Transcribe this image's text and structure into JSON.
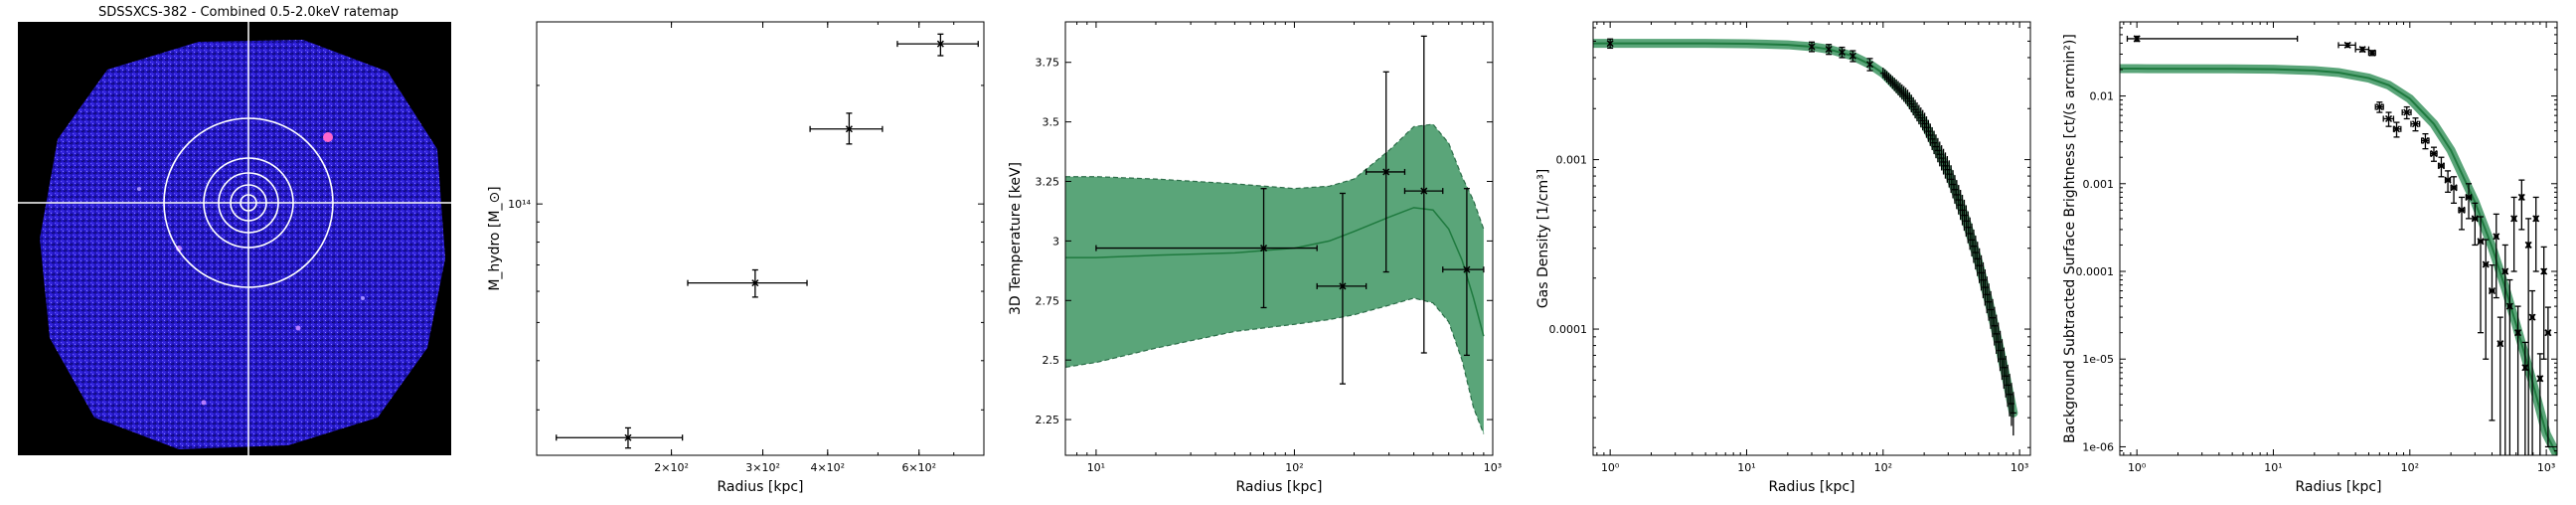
{
  "colors": {
    "band": "#5aa579",
    "band_edge": "#2c6e49",
    "curve": "#1f7a3f",
    "ring": "#ffffff",
    "image_bg": "#000000",
    "image_blob": "#2a1bd6"
  },
  "image_panel": {
    "title": "SDSSXCS-382 - Combined 0.5-2.0keV ratemap"
  },
  "chart_data": [
    {
      "type": "scatter",
      "name": "hydrostatic-mass-profile",
      "xlabel": "Radius [kpc]",
      "ylabel": "M_hydro [M_⊙]",
      "xscale": "log",
      "yscale": "log",
      "xlim": [
        110,
        800
      ],
      "ylim": [
        23000000000000.0,
        290000000000000.0
      ],
      "xticks": [
        {
          "v": 200,
          "label": "2×10²"
        },
        {
          "v": 300,
          "label": "3×10²"
        },
        {
          "v": 400,
          "label": "4×10²"
        },
        {
          "v": 600,
          "label": "6×10²"
        }
      ],
      "yticks": [
        {
          "v": 100000000000000.0,
          "label": "10¹⁴"
        }
      ],
      "points": [
        {
          "x": 165,
          "y": 25500000000000.0,
          "xlo": 120,
          "xhi": 210,
          "ylo": 24000000000000.0,
          "yhi": 27000000000000.0
        },
        {
          "x": 290,
          "y": 63000000000000.0,
          "xlo": 215,
          "xhi": 365,
          "ylo": 58000000000000.0,
          "yhi": 68000000000000.0
        },
        {
          "x": 440,
          "y": 155000000000000.0,
          "xlo": 370,
          "xhi": 510,
          "ylo": 142000000000000.0,
          "yhi": 170000000000000.0
        },
        {
          "x": 660,
          "y": 255000000000000.0,
          "xlo": 545,
          "xhi": 780,
          "ylo": 238000000000000.0,
          "yhi": 270000000000000.0
        }
      ]
    },
    {
      "type": "line",
      "name": "3d-temperature-profile",
      "xlabel": "Radius [kpc]",
      "ylabel": "3D Temperature [keV]",
      "xscale": "log",
      "xlim": [
        7,
        1000
      ],
      "ylim": [
        2.1,
        3.92
      ],
      "xticks": [
        {
          "v": 10,
          "label": "10¹"
        },
        {
          "v": 100,
          "label": "10²"
        },
        {
          "v": 1000,
          "label": "10³"
        }
      ],
      "yticks": [
        {
          "v": 2.25,
          "label": "2.25"
        },
        {
          "v": 2.5,
          "label": "2.5"
        },
        {
          "v": 2.75,
          "label": "2.75"
        },
        {
          "v": 3,
          "label": "3"
        },
        {
          "v": 3.25,
          "label": "3.25"
        },
        {
          "v": 3.5,
          "label": "3.5"
        },
        {
          "v": 3.75,
          "label": "3.75"
        }
      ],
      "model": {
        "x": [
          7,
          10,
          20,
          50,
          100,
          150,
          200,
          300,
          400,
          500,
          600,
          700,
          800,
          900
        ],
        "y": [
          2.93,
          2.93,
          2.94,
          2.95,
          2.97,
          3.0,
          3.04,
          3.1,
          3.14,
          3.13,
          3.05,
          2.92,
          2.76,
          2.6
        ],
        "lo": [
          2.47,
          2.49,
          2.55,
          2.62,
          2.65,
          2.67,
          2.69,
          2.73,
          2.76,
          2.74,
          2.66,
          2.5,
          2.3,
          2.19
        ],
        "hi": [
          3.27,
          3.27,
          3.26,
          3.24,
          3.22,
          3.23,
          3.26,
          3.38,
          3.48,
          3.49,
          3.41,
          3.27,
          3.17,
          3.05
        ]
      },
      "points": [
        {
          "x": 70,
          "y": 2.97,
          "xlo": 10,
          "xhi": 130,
          "ylo": 2.72,
          "yhi": 3.22
        },
        {
          "x": 175,
          "y": 2.81,
          "xlo": 130,
          "xhi": 230,
          "ylo": 2.4,
          "yhi": 3.2
        },
        {
          "x": 290,
          "y": 3.29,
          "xlo": 230,
          "xhi": 360,
          "ylo": 2.87,
          "yhi": 3.71
        },
        {
          "x": 450,
          "y": 3.21,
          "xlo": 360,
          "xhi": 560,
          "ylo": 2.53,
          "yhi": 3.86
        },
        {
          "x": 740,
          "y": 2.88,
          "xlo": 560,
          "xhi": 900,
          "ylo": 2.52,
          "yhi": 3.22
        }
      ]
    },
    {
      "type": "line",
      "name": "gas-density-profile",
      "xlabel": "Radius [kpc]",
      "ylabel": "Gas Density [1/cm³]",
      "xscale": "log",
      "yscale": "log",
      "xlim": [
        0.75,
        1200
      ],
      "ylim": [
        1.8e-05,
        0.0065
      ],
      "xticks": [
        {
          "v": 1,
          "label": "10⁰"
        },
        {
          "v": 10,
          "label": "10¹"
        },
        {
          "v": 100,
          "label": "10²"
        },
        {
          "v": 1000,
          "label": "10³"
        }
      ],
      "yticks": [
        {
          "v": 0.001,
          "label": "0.001"
        },
        {
          "v": 0.0001,
          "label": "0.0001"
        }
      ],
      "model": {
        "x": [
          0.75,
          1,
          5,
          10,
          20,
          30,
          40,
          60,
          80,
          100,
          150,
          200,
          300,
          400,
          500,
          600,
          700,
          800,
          900
        ],
        "y": [
          0.00485,
          0.00485,
          0.00485,
          0.00483,
          0.00476,
          0.00464,
          0.00448,
          0.00409,
          0.00365,
          0.00323,
          0.00232,
          0.00165,
          0.00085,
          0.000452,
          0.000248,
          0.000141,
          8.3e-05,
          5.1e-05,
          3.2e-05
        ]
      },
      "points": [
        {
          "x": 1,
          "y": 0.00485,
          "yerr": 0.0003
        },
        {
          "x": 30,
          "y": 0.00464,
          "yerr": 0.0003
        },
        {
          "x": 40,
          "y": 0.00448,
          "yerr": 0.0003
        },
        {
          "x": 50,
          "y": 0.0043,
          "yerr": 0.0003
        },
        {
          "x": 60,
          "y": 0.00409,
          "yerr": 0.0003
        },
        {
          "x": 80,
          "y": 0.00365,
          "yerr": 0.0003
        }
      ],
      "dense_error_range": [
        100,
        900
      ]
    },
    {
      "type": "scatter",
      "name": "surface-brightness-profile",
      "xlabel": "Radius [kpc]",
      "ylabel": "Background Subtracted Surface Brightness [ct/(s arcmin²)]",
      "xscale": "log",
      "yscale": "log",
      "xlim": [
        0.75,
        1200
      ],
      "ylim": [
        8e-07,
        0.07
      ],
      "xticks": [
        {
          "v": 1,
          "label": "10⁰"
        },
        {
          "v": 10,
          "label": "10¹"
        },
        {
          "v": 100,
          "label": "10²"
        },
        {
          "v": 1000,
          "label": "10³"
        }
      ],
      "yticks": [
        {
          "v": 0.01,
          "label": "0.01"
        },
        {
          "v": 0.001,
          "label": "0.001"
        },
        {
          "v": 0.0001,
          "label": "0.0001"
        },
        {
          "v": 1e-05,
          "label": "1e-05"
        },
        {
          "v": 1e-06,
          "label": "1e-06"
        }
      ],
      "model": {
        "x": [
          0.75,
          1,
          5,
          10,
          20,
          30,
          50,
          70,
          100,
          150,
          200,
          300,
          400,
          500,
          600,
          800,
          1000,
          1200
        ],
        "y": [
          0.0205,
          0.0205,
          0.0204,
          0.0202,
          0.0195,
          0.0185,
          0.016,
          0.0133,
          0.0093,
          0.0048,
          0.0024,
          0.00062,
          0.00019,
          6.5e-05,
          2.5e-05,
          5.2e-06,
          1.4e-06,
          8e-07
        ]
      },
      "points": [
        {
          "x": 1,
          "y": 0.045,
          "xlo": 0.85,
          "xhi": 15,
          "yerr": 0.003
        },
        {
          "x": 35,
          "y": 0.038,
          "xlo": 30,
          "xhi": 40,
          "yerr": 0.002
        },
        {
          "x": 45,
          "y": 0.034,
          "xlo": 40,
          "xhi": 50,
          "yerr": 0.002
        },
        {
          "x": 53,
          "y": 0.031,
          "xlo": 50,
          "xhi": 56,
          "yerr": 0.002
        },
        {
          "x": 60,
          "y": 0.0075,
          "xlo": 56,
          "xhi": 64,
          "yerr": 0.001
        },
        {
          "x": 70,
          "y": 0.0055,
          "xlo": 64,
          "xhi": 76,
          "yerr": 0.001
        },
        {
          "x": 80,
          "y": 0.0042,
          "xlo": 76,
          "xhi": 86,
          "yerr": 0.0008
        },
        {
          "x": 95,
          "y": 0.0065,
          "xlo": 88,
          "xhi": 102,
          "yerr": 0.001
        },
        {
          "x": 110,
          "y": 0.0048,
          "xlo": 102,
          "xhi": 118,
          "yerr": 0.0008
        },
        {
          "x": 130,
          "y": 0.0031,
          "xlo": 122,
          "xhi": 138,
          "yerr": 0.0006
        },
        {
          "x": 150,
          "y": 0.0022,
          "xlo": 142,
          "xhi": 158,
          "yerr": 0.0004
        },
        {
          "x": 170,
          "y": 0.0016,
          "xlo": 162,
          "xhi": 178,
          "yerr": 0.0004
        },
        {
          "x": 190,
          "y": 0.0011,
          "xlo": 182,
          "xhi": 198,
          "yerr": 0.0003
        },
        {
          "x": 210,
          "y": 0.0009,
          "xlo": 200,
          "xhi": 220,
          "yerr": 0.0003
        },
        {
          "x": 240,
          "y": 0.0005,
          "xlo": 228,
          "xhi": 252,
          "yerr": 0.0002
        },
        {
          "x": 270,
          "y": 0.0007,
          "xlo": 258,
          "xhi": 282,
          "yerr": 0.0003
        },
        {
          "x": 300,
          "y": 0.0004,
          "xlo": 288,
          "xhi": 312,
          "yerr": 0.0002
        },
        {
          "x": 330,
          "y": 0.00022,
          "xlo": 318,
          "xhi": 342,
          "yerr": 0.0002
        },
        {
          "x": 360,
          "y": 0.00012,
          "xlo": 348,
          "xhi": 372,
          "yerr": 0.00011
        },
        {
          "x": 400,
          "y": 6e-05,
          "xlo": 385,
          "xhi": 415,
          "yerr": 5.8e-05
        },
        {
          "x": 430,
          "y": 0.00025,
          "xlo": 418,
          "xhi": 442,
          "yerr": 0.0002
        },
        {
          "x": 460,
          "y": 1.5e-05,
          "xlo": 446,
          "xhi": 474,
          "yerr": 1.5e-05
        },
        {
          "x": 500,
          "y": 0.0001,
          "xlo": 485,
          "xhi": 515,
          "yerr": 0.0001
        },
        {
          "x": 540,
          "y": 4e-05,
          "xlo": 525,
          "xhi": 555,
          "yerr": 4e-05
        },
        {
          "x": 580,
          "y": 0.0004,
          "xlo": 565,
          "xhi": 595,
          "yerr": 0.0003
        },
        {
          "x": 620,
          "y": 2e-05,
          "xlo": 605,
          "xhi": 635,
          "yerr": 2e-05
        },
        {
          "x": 660,
          "y": 0.0007,
          "xlo": 645,
          "xhi": 675,
          "yerr": 0.0004
        },
        {
          "x": 700,
          "y": 8e-06,
          "xlo": 685,
          "xhi": 715,
          "yerr": 7.5e-06
        },
        {
          "x": 740,
          "y": 0.0002,
          "xlo": 725,
          "xhi": 755,
          "yerr": 0.0002
        },
        {
          "x": 790,
          "y": 3e-05,
          "xlo": 770,
          "xhi": 810,
          "yerr": 3e-05
        },
        {
          "x": 840,
          "y": 0.0004,
          "xlo": 820,
          "xhi": 860,
          "yerr": 0.0003
        },
        {
          "x": 900,
          "y": 6e-06,
          "xlo": 880,
          "xhi": 920,
          "yerr": 5.5e-06
        },
        {
          "x": 960,
          "y": 0.0001,
          "xlo": 940,
          "xhi": 980,
          "yerr": 9e-05
        },
        {
          "x": 1030,
          "y": 2e-05,
          "xlo": 1000,
          "xhi": 1060,
          "yerr": 1.9e-05
        }
      ]
    }
  ]
}
